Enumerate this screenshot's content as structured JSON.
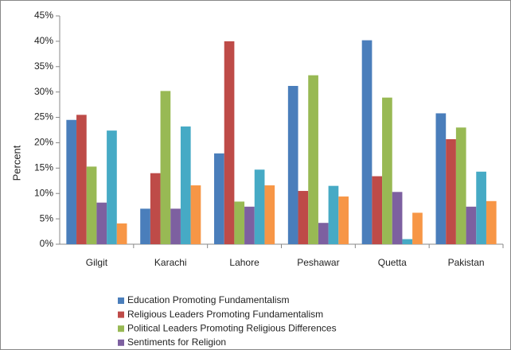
{
  "chart_data": {
    "type": "bar",
    "y_label": "Percent",
    "categories": [
      "Gilgit",
      "Karachi",
      "Lahore",
      "Peshawar",
      "Quetta",
      "Pakistan"
    ],
    "series": [
      {
        "name": "Education Promoting Fundamentalism",
        "color": "#4a7ebb",
        "values": [
          24.5,
          7.0,
          17.9,
          31.2,
          40.2,
          25.8
        ]
      },
      {
        "name": "Religious Leaders Promoting Fundamentalism",
        "color": "#be4b48",
        "values": [
          25.5,
          14.0,
          40.0,
          10.5,
          13.4,
          20.7
        ]
      },
      {
        "name": "Political Leaders Promoting Religious Differences",
        "color": "#98b954",
        "values": [
          15.3,
          30.2,
          8.4,
          33.3,
          28.9,
          23.0
        ]
      },
      {
        "name": "Sentiments for Religion",
        "color": "#7d60a0",
        "values": [
          8.2,
          7.0,
          7.4,
          4.2,
          10.3,
          7.4
        ]
      },
      {
        "color": "#46aac5",
        "values": [
          22.4,
          23.2,
          14.7,
          11.5,
          1.0,
          14.3
        ]
      },
      {
        "color": "#f79646",
        "values": [
          4.1,
          11.6,
          11.6,
          9.4,
          6.2,
          8.5
        ]
      }
    ],
    "ylim": [
      0,
      45
    ],
    "yticks": [
      {
        "value": 0,
        "label": "0%"
      },
      {
        "value": 5,
        "label": "5%"
      },
      {
        "value": 10,
        "label": "10%"
      },
      {
        "value": 15,
        "label": "15%"
      },
      {
        "value": 20,
        "label": "20%"
      },
      {
        "value": 25,
        "label": "25%"
      },
      {
        "value": 30,
        "label": "30%"
      },
      {
        "value": 35,
        "label": "35%"
      },
      {
        "value": 40,
        "label": "40%"
      },
      {
        "value": 45,
        "label": "45%"
      }
    ],
    "grid": false
  }
}
